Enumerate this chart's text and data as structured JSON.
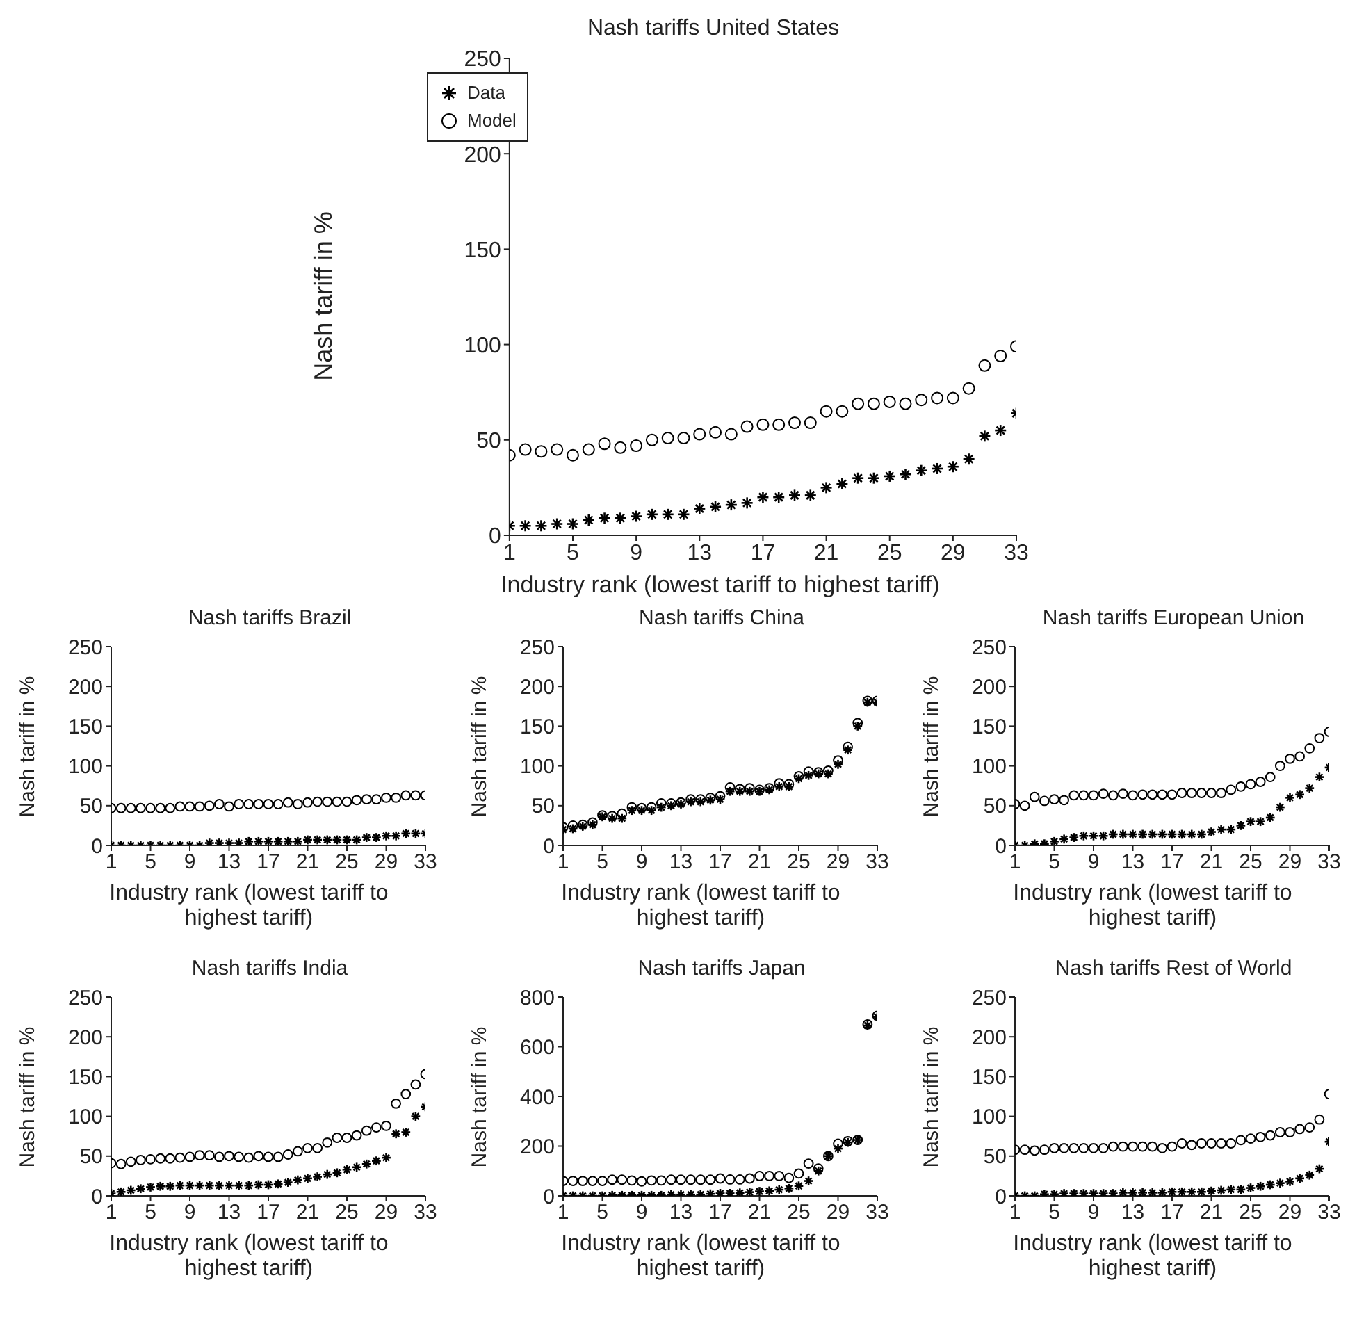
{
  "chart_data": [
    {
      "type": "scatter",
      "title": "Nash tariffs United States",
      "xlabel": "Industry rank (lowest tariff to highest tariff)",
      "ylabel": "Nash tariff in %",
      "x": [
        1,
        2,
        3,
        4,
        5,
        6,
        7,
        8,
        9,
        10,
        11,
        12,
        13,
        14,
        15,
        16,
        17,
        18,
        19,
        20,
        21,
        22,
        23,
        24,
        25,
        26,
        27,
        28,
        29,
        30,
        31,
        32,
        33
      ],
      "xlim": [
        1,
        33
      ],
      "xticks": [
        1,
        5,
        9,
        13,
        17,
        21,
        25,
        29,
        33
      ],
      "ylim": [
        0,
        250
      ],
      "yticks": [
        0,
        50,
        100,
        150,
        200,
        250
      ],
      "legend": "top left",
      "series": [
        {
          "name": "Data",
          "color": "#000000",
          "marker": "cross",
          "values": [
            5,
            5,
            5,
            6,
            6,
            8,
            9,
            9,
            10,
            11,
            11,
            11,
            14,
            15,
            16,
            17,
            20,
            20,
            21,
            21,
            25,
            27,
            30,
            30,
            31,
            32,
            34,
            35,
            36,
            40,
            52,
            55,
            64
          ]
        },
        {
          "name": "Model",
          "color": "#000000",
          "marker": "circle",
          "values": [
            42,
            45,
            44,
            45,
            42,
            45,
            48,
            46,
            47,
            50,
            51,
            51,
            53,
            54,
            53,
            57,
            58,
            58,
            59,
            59,
            65,
            65,
            69,
            69,
            70,
            69,
            71,
            72,
            72,
            77,
            89,
            94,
            99
          ]
        }
      ]
    },
    {
      "type": "scatter",
      "title": "Nash tariffs Brazil",
      "xlabel": "Industry rank (lowest tariff to highest tariff)",
      "ylabel": "Nash tariff in %",
      "x": [
        1,
        2,
        3,
        4,
        5,
        6,
        7,
        8,
        9,
        10,
        11,
        12,
        13,
        14,
        15,
        16,
        17,
        18,
        19,
        20,
        21,
        22,
        23,
        24,
        25,
        26,
        27,
        28,
        29,
        30,
        31,
        32,
        33
      ],
      "xlim": [
        1,
        33
      ],
      "xticks": [
        1,
        5,
        9,
        13,
        17,
        21,
        25,
        29,
        33
      ],
      "ylim": [
        0,
        250
      ],
      "yticks": [
        0,
        50,
        100,
        150,
        200,
        250
      ],
      "series": [
        {
          "color": "#000000",
          "marker": "cross",
          "values": [
            0,
            0,
            0,
            0,
            0,
            0,
            0,
            0,
            0,
            0,
            3,
            3,
            3,
            3,
            5,
            5,
            5,
            5,
            5,
            5,
            7,
            7,
            7,
            7,
            7,
            7,
            10,
            10,
            12,
            12,
            15,
            15,
            15
          ]
        },
        {
          "color": "#000000",
          "marker": "circle",
          "values": [
            47,
            47,
            47,
            47,
            47,
            47,
            47,
            49,
            49,
            49,
            50,
            52,
            49,
            52,
            52,
            52,
            52,
            52,
            54,
            52,
            54,
            55,
            55,
            55,
            55,
            57,
            58,
            58,
            60,
            60,
            63,
            63,
            63
          ]
        }
      ]
    },
    {
      "type": "scatter",
      "title": "Nash tariffs China",
      "xlabel": "Industry rank (lowest tariff to highest tariff)",
      "ylabel": "Nash tariff in %",
      "x": [
        1,
        2,
        3,
        4,
        5,
        6,
        7,
        8,
        9,
        10,
        11,
        12,
        13,
        14,
        15,
        16,
        17,
        18,
        19,
        20,
        21,
        22,
        23,
        24,
        25,
        26,
        27,
        28,
        29,
        30,
        31,
        32,
        33
      ],
      "xlim": [
        1,
        33
      ],
      "xticks": [
        1,
        5,
        9,
        13,
        17,
        21,
        25,
        29,
        33
      ],
      "ylim": [
        0,
        250
      ],
      "yticks": [
        0,
        50,
        100,
        150,
        200,
        250
      ],
      "series": [
        {
          "color": "#000000",
          "marker": "cross",
          "values": [
            20,
            21,
            24,
            26,
            36,
            34,
            34,
            44,
            44,
            44,
            48,
            50,
            52,
            55,
            55,
            57,
            58,
            68,
            68,
            68,
            68,
            70,
            74,
            74,
            84,
            88,
            90,
            90,
            102,
            120,
            150,
            180,
            180
          ]
        },
        {
          "color": "#000000",
          "marker": "circle",
          "values": [
            23,
            25,
            26,
            29,
            38,
            37,
            40,
            48,
            47,
            48,
            53,
            53,
            54,
            58,
            58,
            60,
            62,
            73,
            71,
            72,
            70,
            72,
            78,
            77,
            87,
            93,
            92,
            94,
            107,
            124,
            154,
            182,
            182
          ]
        }
      ]
    },
    {
      "type": "scatter",
      "title": "Nash tariffs European Union",
      "xlabel": "Industry rank (lowest tariff to highest tariff)",
      "ylabel": "Nash tariff in %",
      "x": [
        1,
        2,
        3,
        4,
        5,
        6,
        7,
        8,
        9,
        10,
        11,
        12,
        13,
        14,
        15,
        16,
        17,
        18,
        19,
        20,
        21,
        22,
        23,
        24,
        25,
        26,
        27,
        28,
        29,
        30,
        31,
        32,
        33
      ],
      "xlim": [
        1,
        33
      ],
      "xticks": [
        1,
        5,
        9,
        13,
        17,
        21,
        25,
        29,
        33
      ],
      "ylim": [
        0,
        250
      ],
      "yticks": [
        0,
        50,
        100,
        150,
        200,
        250
      ],
      "series": [
        {
          "color": "#000000",
          "marker": "cross",
          "values": [
            0,
            0,
            2,
            2,
            5,
            8,
            10,
            12,
            12,
            12,
            14,
            14,
            14,
            14,
            14,
            14,
            14,
            14,
            14,
            14,
            17,
            20,
            20,
            25,
            30,
            30,
            35,
            48,
            60,
            64,
            72,
            86,
            98
          ]
        },
        {
          "color": "#000000",
          "marker": "circle",
          "values": [
            52,
            50,
            61,
            56,
            58,
            57,
            63,
            63,
            63,
            65,
            63,
            65,
            63,
            64,
            64,
            64,
            64,
            66,
            66,
            66,
            66,
            66,
            70,
            74,
            77,
            80,
            86,
            100,
            109,
            112,
            122,
            135,
            143
          ]
        }
      ]
    },
    {
      "type": "scatter",
      "title": "Nash tariffs India",
      "xlabel": "Industry rank (lowest tariff to highest tariff)",
      "ylabel": "Nash tariff in %",
      "x": [
        1,
        2,
        3,
        4,
        5,
        6,
        7,
        8,
        9,
        10,
        11,
        12,
        13,
        14,
        15,
        16,
        17,
        18,
        19,
        20,
        21,
        22,
        23,
        24,
        25,
        26,
        27,
        28,
        29,
        30,
        31,
        32,
        33
      ],
      "xlim": [
        1,
        33
      ],
      "xticks": [
        1,
        5,
        9,
        13,
        17,
        21,
        25,
        29,
        33
      ],
      "ylim": [
        0,
        250
      ],
      "yticks": [
        0,
        50,
        100,
        150,
        200,
        250
      ],
      "series": [
        {
          "color": "#000000",
          "marker": "cross",
          "values": [
            3,
            5,
            7,
            9,
            11,
            12,
            12,
            13,
            13,
            13,
            13,
            13,
            13,
            13,
            13,
            14,
            14,
            15,
            17,
            20,
            22,
            24,
            27,
            29,
            33,
            36,
            40,
            44,
            48,
            78,
            80,
            100,
            112
          ]
        },
        {
          "color": "#000000",
          "marker": "circle",
          "values": [
            41,
            40,
            43,
            45,
            46,
            47,
            47,
            48,
            49,
            51,
            51,
            49,
            50,
            49,
            48,
            50,
            49,
            49,
            52,
            56,
            60,
            60,
            67,
            73,
            73,
            76,
            82,
            86,
            88,
            116,
            128,
            140,
            153
          ]
        }
      ]
    },
    {
      "type": "scatter",
      "title": "Nash tariffs Japan",
      "xlabel": "Industry rank (lowest tariff to highest tariff)",
      "ylabel": "Nash tariff in %",
      "x": [
        1,
        2,
        3,
        4,
        5,
        6,
        7,
        8,
        9,
        10,
        11,
        12,
        13,
        14,
        15,
        16,
        17,
        18,
        19,
        20,
        21,
        22,
        23,
        24,
        25,
        26,
        27,
        28,
        29,
        30,
        31,
        32,
        33
      ],
      "xlim": [
        1,
        33
      ],
      "xticks": [
        1,
        5,
        9,
        13,
        17,
        21,
        25,
        29,
        33
      ],
      "ylim": [
        0,
        800
      ],
      "yticks": [
        0,
        200,
        400,
        600,
        800
      ],
      "series": [
        {
          "color": "#000000",
          "marker": "cross",
          "values": [
            0,
            0,
            0,
            0,
            0,
            2,
            2,
            2,
            2,
            2,
            2,
            5,
            5,
            5,
            5,
            8,
            10,
            10,
            12,
            15,
            18,
            20,
            25,
            30,
            40,
            60,
            100,
            160,
            190,
            215,
            225,
            685,
            720
          ]
        },
        {
          "color": "#000000",
          "marker": "circle",
          "values": [
            60,
            60,
            60,
            60,
            60,
            65,
            65,
            62,
            58,
            62,
            62,
            65,
            65,
            65,
            65,
            65,
            70,
            66,
            66,
            70,
            80,
            80,
            80,
            72,
            90,
            130,
            110,
            160,
            210,
            220,
            225,
            690,
            725
          ]
        }
      ]
    },
    {
      "type": "scatter",
      "title": "Nash tariffs Rest of World",
      "xlabel": "Industry rank (lowest tariff to highest tariff)",
      "ylabel": "Nash tariff in %",
      "x": [
        1,
        2,
        3,
        4,
        5,
        6,
        7,
        8,
        9,
        10,
        11,
        12,
        13,
        14,
        15,
        16,
        17,
        18,
        19,
        20,
        21,
        22,
        23,
        24,
        25,
        26,
        27,
        28,
        29,
        30,
        31,
        32,
        33
      ],
      "xlim": [
        1,
        33
      ],
      "xticks": [
        1,
        5,
        9,
        13,
        17,
        21,
        25,
        29,
        33
      ],
      "ylim": [
        0,
        250
      ],
      "yticks": [
        0,
        50,
        100,
        150,
        200,
        250
      ],
      "series": [
        {
          "color": "#000000",
          "marker": "cross",
          "values": [
            0,
            0,
            0,
            2,
            2,
            3,
            3,
            3,
            3,
            3,
            3,
            4,
            4,
            4,
            4,
            4,
            5,
            5,
            5,
            5,
            6,
            7,
            8,
            8,
            10,
            12,
            14,
            16,
            18,
            22,
            26,
            34,
            68
          ]
        },
        {
          "color": "#000000",
          "marker": "circle",
          "values": [
            58,
            58,
            57,
            58,
            60,
            60,
            60,
            60,
            60,
            60,
            62,
            62,
            62,
            62,
            62,
            60,
            62,
            66,
            64,
            66,
            66,
            66,
            66,
            70,
            72,
            74,
            76,
            80,
            80,
            84,
            86,
            96,
            128
          ]
        }
      ]
    }
  ]
}
